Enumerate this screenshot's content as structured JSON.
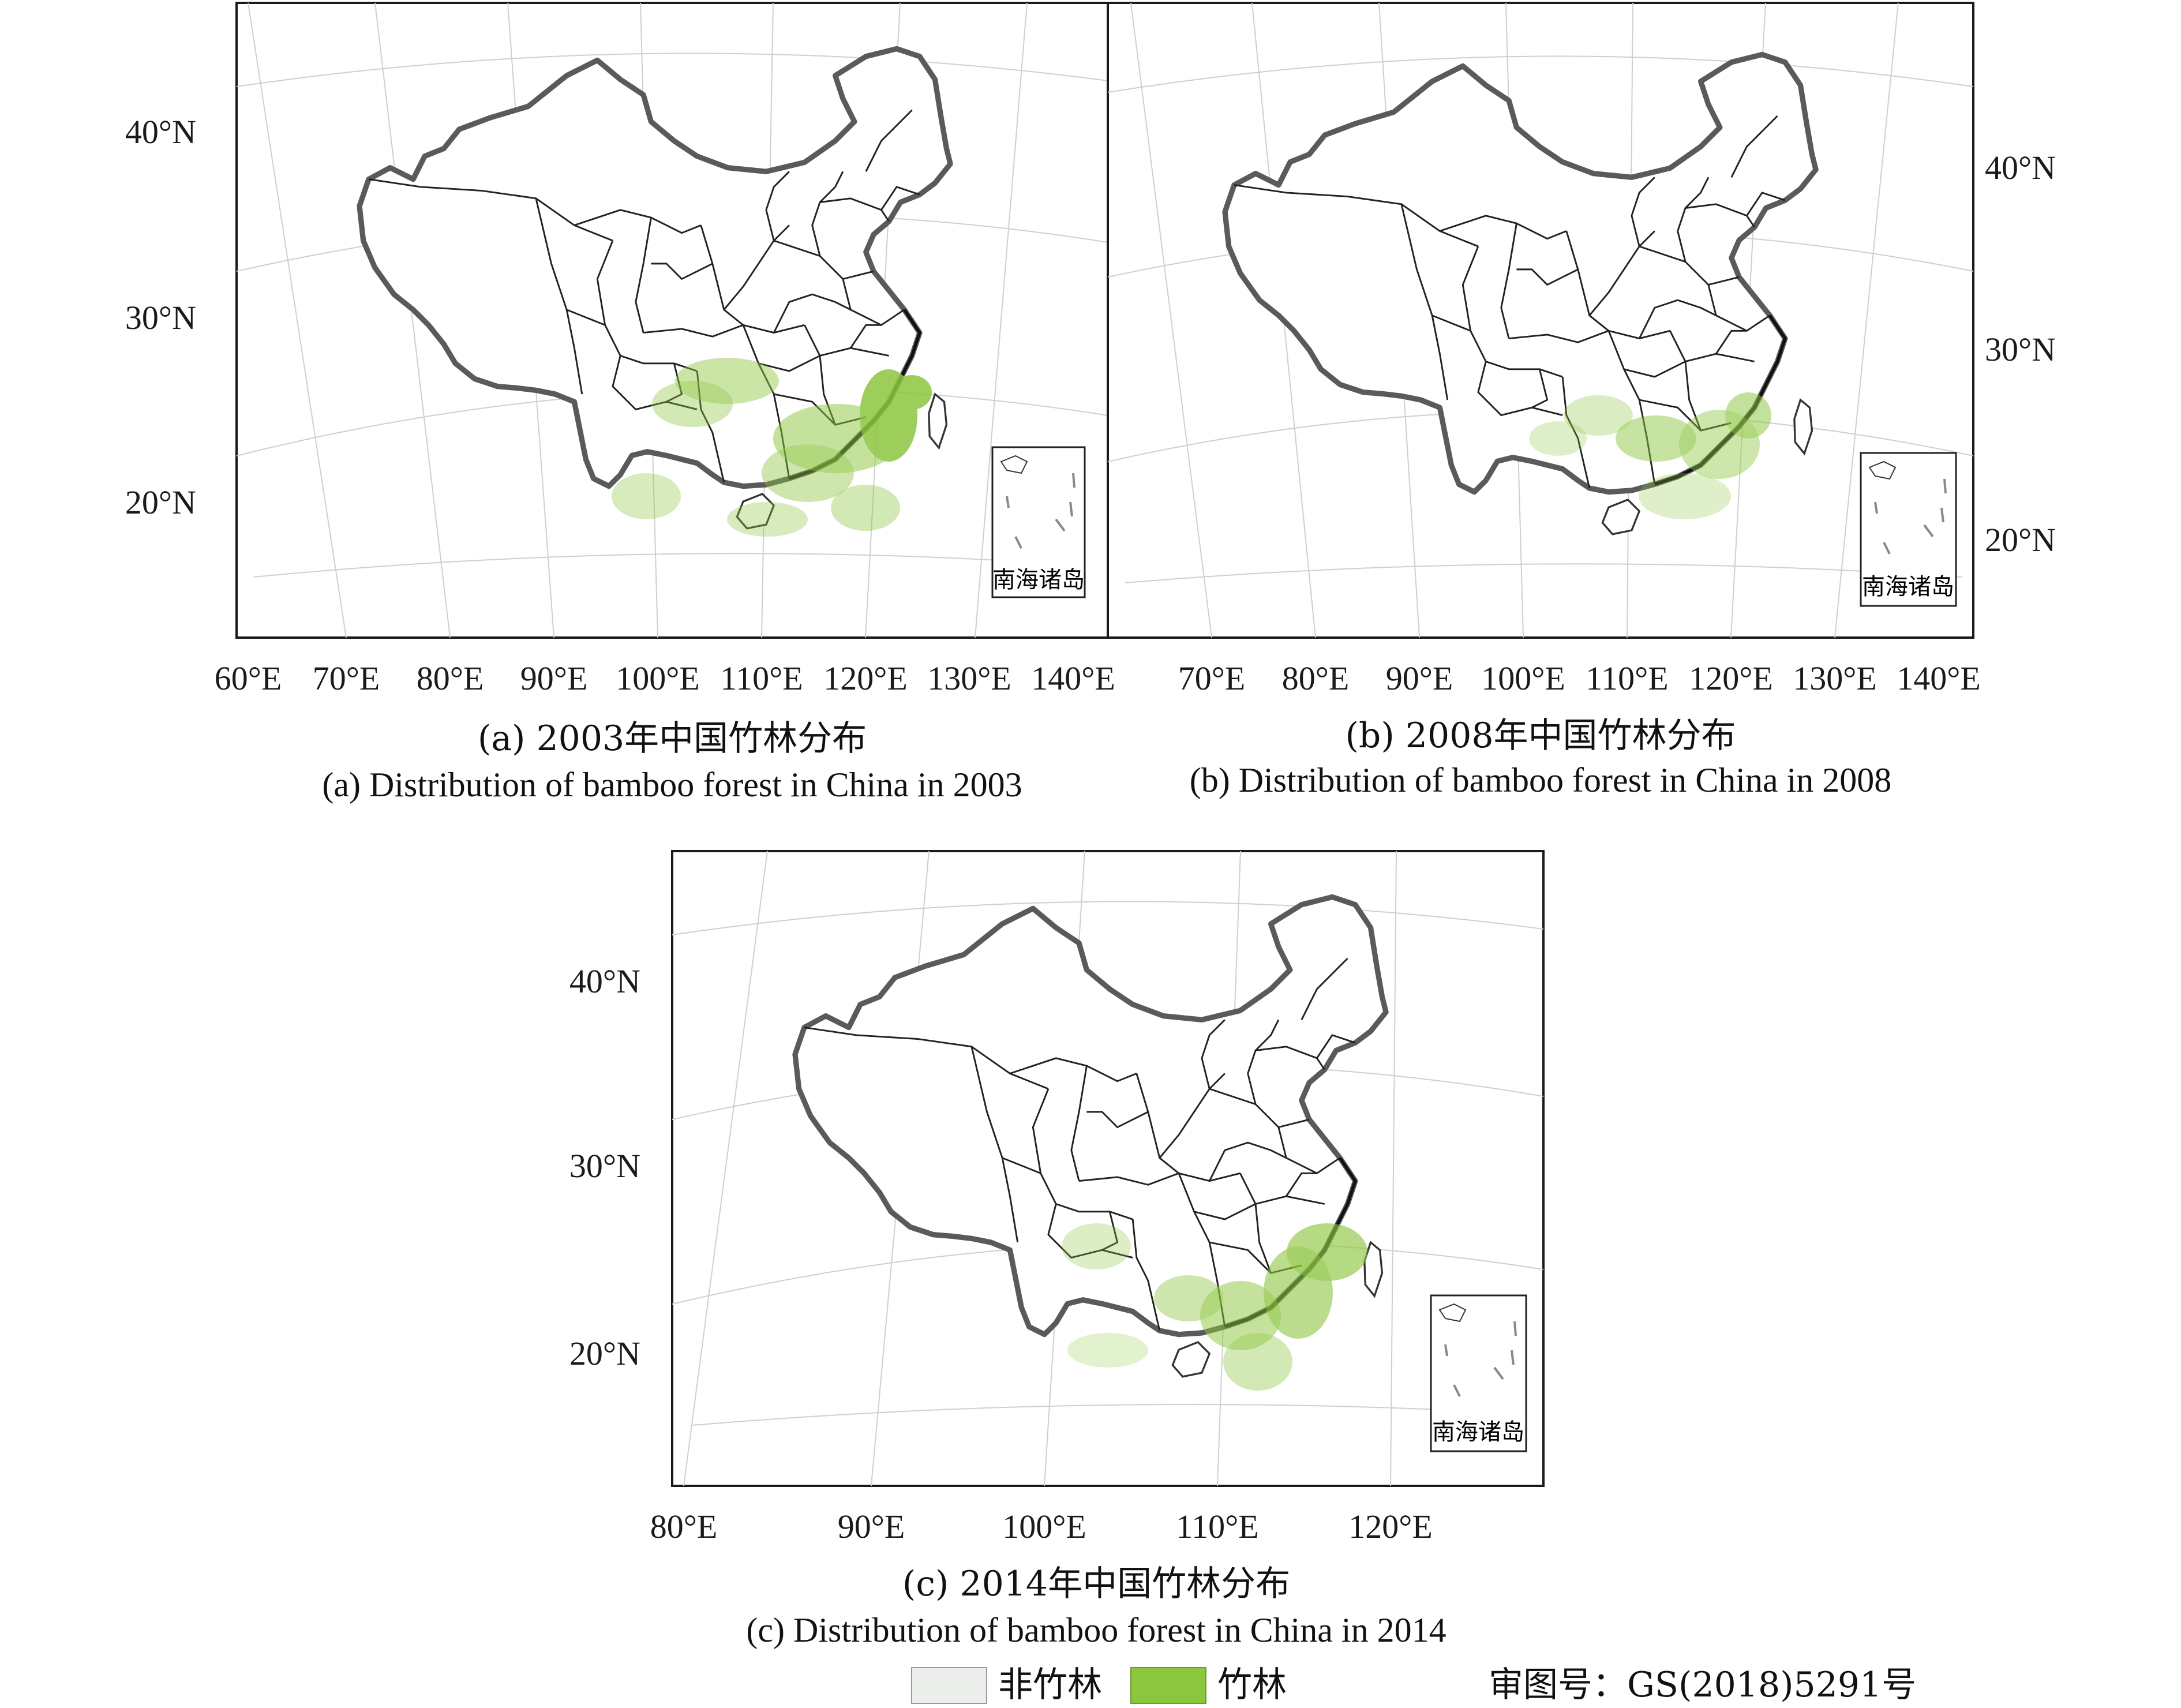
{
  "palette": {
    "non_bamboo": "#eceeec",
    "bamboo": "#8cc63f",
    "border": "#222222",
    "grid": "#cfcfcf"
  },
  "panels": [
    {
      "id": "a",
      "lat_labels": [
        "40°N",
        "30°N",
        "20°N"
      ],
      "lon_labels": [
        "60°E",
        "70°E",
        "80°E",
        "90°E",
        "100°E",
        "110°E",
        "120°E",
        "130°E",
        "140°E"
      ],
      "inset_label": "南海诸岛",
      "caption_cn": "(a) 2003年中国竹林分布",
      "caption_en": "(a) Distribution of bamboo forest in China in 2003"
    },
    {
      "id": "b",
      "lat_labels": [
        "40°N",
        "30°N",
        "20°N"
      ],
      "lon_labels": [
        "70°E",
        "80°E",
        "90°E",
        "100°E",
        "110°E",
        "120°E",
        "130°E",
        "140°E"
      ],
      "inset_label": "南海诸岛",
      "caption_cn": "(b) 2008年中国竹林分布",
      "caption_en": "(b) Distribution of bamboo forest in China in 2008"
    },
    {
      "id": "c",
      "lat_labels": [
        "40°N",
        "30°N",
        "20°N"
      ],
      "lon_labels": [
        "80°E",
        "90°E",
        "100°E",
        "110°E",
        "120°E"
      ],
      "inset_label": "南海诸岛",
      "caption_cn": "(c) 2014年中国竹林分布",
      "caption_en": "(c) Distribution of bamboo forest in China in 2014"
    }
  ],
  "legend": {
    "items": [
      {
        "label": "非竹林",
        "color": "#eceeec"
      },
      {
        "label": "竹林",
        "color": "#8cc63f"
      }
    ],
    "approval": "审图号：GS(2018)5291号"
  }
}
